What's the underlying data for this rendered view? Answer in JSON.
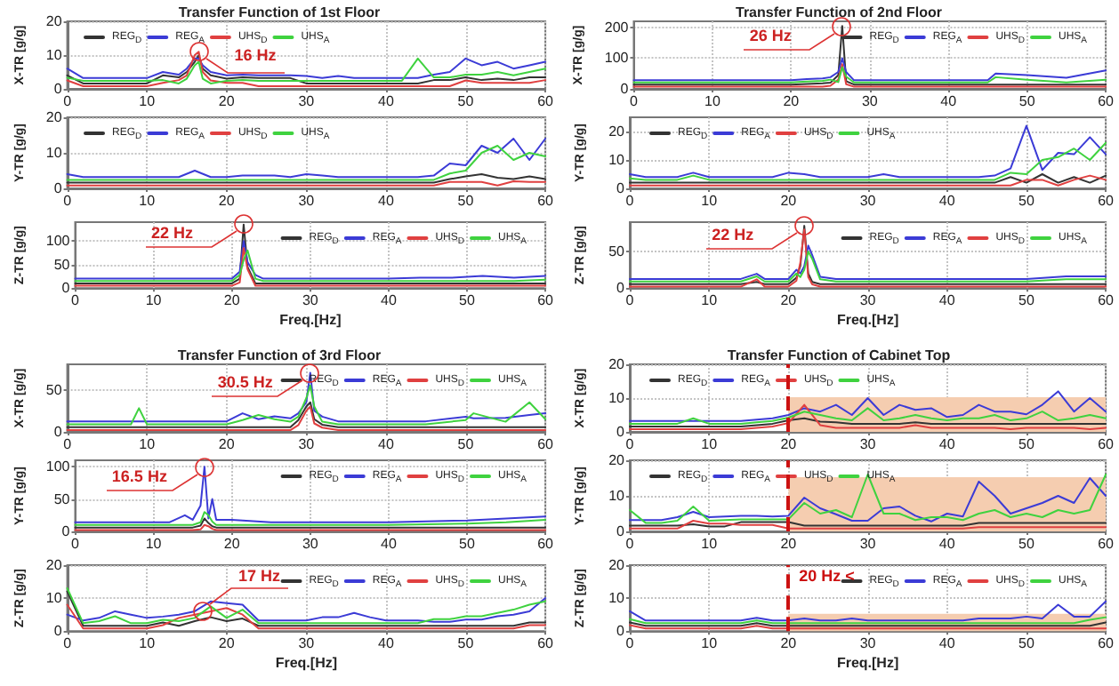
{
  "chart_data": [
    {
      "type": "line",
      "title": "Transfer Function of 1st Floor",
      "ylabel": "X-TR [g/g]",
      "x": [
        0,
        2,
        4,
        6,
        8,
        10,
        12,
        14,
        15,
        16,
        16.5,
        17,
        18,
        20,
        22,
        24,
        26,
        28,
        30,
        32,
        34,
        36,
        38,
        40,
        42,
        44,
        46,
        48,
        50,
        52,
        54,
        56,
        58,
        60
      ],
      "xlim": [
        0,
        60
      ],
      "xticks": [
        0,
        10,
        20,
        30,
        40,
        50,
        60
      ],
      "ylim": [
        0,
        20
      ],
      "yticks": [
        0,
        10,
        20
      ],
      "grid": true,
      "legend": "top left",
      "line_style": "solid",
      "annotations": [
        {
          "text": "16 Hz",
          "x": 16.5,
          "y": 11
        }
      ],
      "series": [
        {
          "name": "REG$_{D}$",
          "color": "#333333",
          "values": [
            4,
            1.6,
            1.6,
            1.6,
            1.6,
            1.6,
            4,
            3.4,
            5,
            8,
            10,
            6,
            4,
            3,
            3.4,
            3.2,
            3.2,
            3.2,
            1.6,
            1.6,
            1.6,
            1.6,
            1.6,
            1.6,
            1.6,
            1.6,
            2.6,
            2.6,
            3.4,
            2.6,
            3,
            2.6,
            3.4,
            3.4
          ]
        },
        {
          "name": "REG$_{A}$",
          "color": "#3b3bd6",
          "values": [
            6,
            3.2,
            3.2,
            3.2,
            3.2,
            3.2,
            5,
            4.2,
            6,
            9,
            9,
            7,
            5,
            4,
            4.2,
            4,
            4,
            4,
            3.8,
            3.2,
            3.8,
            3.2,
            3.2,
            3.2,
            3.2,
            3.2,
            4.2,
            5,
            9,
            7,
            8,
            6,
            7,
            8
          ]
        },
        {
          "name": "UHS$_{D}$",
          "color": "#e04040",
          "values": [
            2.5,
            0.8,
            0.8,
            0.8,
            0.8,
            0.8,
            1.8,
            2.6,
            4,
            10,
            11,
            5,
            2.5,
            1.8,
            1.8,
            0.8,
            0.8,
            0.8,
            0.8,
            0.8,
            0.8,
            0.8,
            0.8,
            0.8,
            0.8,
            0.8,
            0.8,
            0.8,
            2.5,
            1.8,
            1.8,
            1.8,
            1.8,
            2.6
          ]
        },
        {
          "name": "UHS$_{A}$",
          "color": "#3fd23f",
          "values": [
            3.3,
            2.4,
            2.4,
            2.4,
            2.4,
            2.4,
            2.6,
            1.6,
            3,
            7,
            8,
            3,
            1.6,
            2.4,
            2.6,
            2.4,
            2.4,
            2.4,
            2.4,
            2.4,
            2.4,
            2.4,
            2.4,
            2.4,
            2.4,
            9,
            3.4,
            3.4,
            4.2,
            4.2,
            5,
            4,
            5,
            6
          ]
        }
      ]
    },
    {
      "type": "line",
      "ylabel": "Y-TR [g/g]",
      "x": [
        0,
        2,
        4,
        6,
        8,
        10,
        12,
        14,
        16,
        18,
        20,
        22,
        24,
        26,
        28,
        30,
        32,
        34,
        36,
        38,
        40,
        42,
        44,
        46,
        48,
        50,
        52,
        54,
        56,
        58,
        60
      ],
      "xlim": [
        0,
        60
      ],
      "xticks": [
        0,
        10,
        20,
        30,
        40,
        50,
        60
      ],
      "ylim": [
        0,
        20
      ],
      "yticks": [
        0,
        10,
        20
      ],
      "grid": true,
      "legend": "top left",
      "line_style": "solid",
      "series": [
        {
          "name": "REG$_{D}$",
          "color": "#333333",
          "values": [
            1.6,
            1.6,
            1.6,
            1.6,
            1.6,
            1.6,
            1.6,
            1.6,
            1.6,
            1.6,
            1.6,
            1.6,
            1.6,
            1.6,
            1.6,
            1.6,
            1.6,
            1.6,
            1.6,
            1.6,
            1.6,
            1.6,
            1.6,
            1.6,
            2.6,
            3.4,
            4,
            3,
            2.6,
            3.4,
            2.6
          ]
        },
        {
          "name": "REG$_{A}$",
          "color": "#3b3bd6",
          "values": [
            4,
            3.2,
            3.2,
            3.2,
            3.2,
            3.2,
            3.2,
            3.2,
            5,
            3.2,
            3.2,
            3.6,
            3.6,
            3.6,
            3.2,
            4,
            3.6,
            3.2,
            3.2,
            3.2,
            3.2,
            3.2,
            3.2,
            3.6,
            7,
            6.5,
            12,
            10,
            14,
            8,
            14
          ]
        },
        {
          "name": "UHS$_{D}$",
          "color": "#e04040",
          "values": [
            0.8,
            0.8,
            0.8,
            0.8,
            0.8,
            0.8,
            0.8,
            0.8,
            0.8,
            0.8,
            0.8,
            0.8,
            0.8,
            0.8,
            0.8,
            0.8,
            0.8,
            0.8,
            0.8,
            0.8,
            0.8,
            0.8,
            0.8,
            0.8,
            1.8,
            1.8,
            1.8,
            0.8,
            2,
            1.8,
            1.8
          ]
        },
        {
          "name": "UHS$_{A}$",
          "color": "#3fd23f",
          "values": [
            2.4,
            2.4,
            2.4,
            2.4,
            2.4,
            2.4,
            2.4,
            2.4,
            2.4,
            2.4,
            2.4,
            2.4,
            2.4,
            2.4,
            2.4,
            2.4,
            2.4,
            2.4,
            2.4,
            2.4,
            2.4,
            2.4,
            2.4,
            2.4,
            4.2,
            5,
            10,
            12,
            8,
            10,
            9
          ]
        }
      ]
    },
    {
      "type": "line",
      "ylabel": "Z-TR [g/g]",
      "xlabel": "Freq.[Hz]",
      "x": [
        0,
        4,
        8,
        12,
        14,
        16,
        18,
        20,
        21,
        21.5,
        22,
        23,
        24,
        28,
        32,
        36,
        40,
        44,
        48,
        52,
        56,
        60
      ],
      "xlim": [
        0,
        60
      ],
      "xticks": [
        0,
        10,
        20,
        30,
        40,
        50,
        60
      ],
      "ylim": [
        0,
        140
      ],
      "yticks": [
        0,
        50,
        100
      ],
      "grid": true,
      "legend": "top right",
      "line_style": "solid",
      "annotations": [
        {
          "text": "22 Hz",
          "x": 21.5,
          "y": 135
        }
      ],
      "series": [
        {
          "name": "REG$_{D}$",
          "color": "#333333",
          "values": [
            10,
            10,
            10,
            10,
            10,
            10,
            10,
            10,
            20,
            135,
            45,
            10,
            10,
            10,
            10,
            10,
            10,
            10,
            10,
            10,
            10,
            10
          ]
        },
        {
          "name": "REG$_{A}$",
          "color": "#3b3bd6",
          "values": [
            20,
            20,
            20,
            20,
            20,
            20,
            20,
            20,
            35,
            100,
            55,
            28,
            20,
            20,
            20,
            20,
            20,
            22,
            22,
            26,
            22,
            26
          ]
        },
        {
          "name": "UHS$_{D}$",
          "color": "#e04040",
          "values": [
            5,
            5,
            5,
            5,
            5,
            5,
            5,
            5,
            12,
            85,
            40,
            5,
            5,
            5,
            5,
            5,
            5,
            5,
            5,
            5,
            5,
            5
          ]
        },
        {
          "name": "UHS$_{A}$",
          "color": "#3fd23f",
          "values": [
            15,
            15,
            15,
            15,
            15,
            15,
            15,
            15,
            28,
            60,
            80,
            20,
            15,
            15,
            15,
            15,
            15,
            15,
            15,
            15,
            15,
            18
          ]
        }
      ]
    },
    {
      "type": "line",
      "title": "Transfer Function of 2nd Floor",
      "ylabel": "X-TR [g/g]",
      "x": [
        0,
        5,
        10,
        15,
        20,
        22,
        24,
        25,
        26,
        26.5,
        27,
        28,
        30,
        35,
        40,
        45,
        46,
        50,
        55,
        60
      ],
      "xlim": [
        0,
        60
      ],
      "xticks": [
        0,
        10,
        20,
        30,
        40,
        50,
        60
      ],
      "ylim": [
        0,
        220
      ],
      "yticks": [
        0,
        100,
        200
      ],
      "grid": true,
      "legend": "top right",
      "line_style": "solid",
      "annotations": [
        {
          "text": "26 Hz",
          "x": 26.5,
          "y": 205
        }
      ],
      "series": [
        {
          "name": "REG$_{D}$",
          "color": "#333333",
          "values": [
            14,
            14,
            14,
            14,
            14,
            16,
            18,
            20,
            45,
            205,
            25,
            14,
            14,
            14,
            14,
            14,
            14,
            14,
            14,
            14
          ]
        },
        {
          "name": "REG$_{A}$",
          "color": "#3b3bd6",
          "values": [
            28,
            28,
            28,
            28,
            28,
            32,
            34,
            38,
            55,
            100,
            55,
            28,
            28,
            28,
            28,
            28,
            50,
            45,
            36,
            60
          ]
        },
        {
          "name": "UHS$_{D}$",
          "color": "#e04040",
          "values": [
            7,
            7,
            7,
            7,
            7,
            7,
            7,
            10,
            30,
            80,
            15,
            7,
            7,
            7,
            7,
            7,
            7,
            7,
            7,
            7
          ]
        },
        {
          "name": "UHS$_{A}$",
          "color": "#3fd23f",
          "values": [
            21,
            21,
            21,
            21,
            21,
            24,
            26,
            30,
            22,
            70,
            40,
            21,
            21,
            21,
            21,
            21,
            38,
            30,
            21,
            30
          ]
        }
      ]
    },
    {
      "type": "line",
      "ylabel": "Y-TR [g/g]",
      "x": [
        0,
        2,
        4,
        6,
        8,
        10,
        12,
        14,
        16,
        18,
        20,
        22,
        24,
        26,
        28,
        30,
        32,
        34,
        36,
        38,
        40,
        42,
        44,
        46,
        48,
        50,
        52,
        54,
        56,
        58,
        60
      ],
      "xlim": [
        0,
        60
      ],
      "xticks": [
        0,
        10,
        20,
        30,
        40,
        50,
        60
      ],
      "ylim": [
        0,
        25
      ],
      "yticks": [
        0,
        10,
        20
      ],
      "grid": true,
      "legend": "top left",
      "line_style": "solid",
      "series": [
        {
          "name": "REG$_{D}$",
          "color": "#333333",
          "values": [
            2,
            2,
            2,
            2,
            2,
            2,
            2,
            2,
            2,
            2,
            2,
            2,
            2,
            2,
            2,
            2,
            2,
            2,
            2,
            2,
            2,
            2,
            2,
            2,
            4,
            2,
            5,
            2,
            4,
            2,
            4.5
          ]
        },
        {
          "name": "REG$_{A}$",
          "color": "#3b3bd6",
          "values": [
            5,
            4,
            4,
            4,
            5.5,
            4,
            4,
            4,
            4,
            4,
            5.5,
            5,
            4,
            4,
            4,
            4,
            5,
            4,
            4,
            4,
            4,
            4,
            4,
            4.5,
            7,
            22,
            6.5,
            12.5,
            12,
            18,
            12
          ]
        },
        {
          "name": "UHS$_{D}$",
          "color": "#e04040",
          "values": [
            1,
            1,
            1,
            1,
            1,
            1,
            1,
            1,
            1,
            1,
            1,
            1,
            1,
            1,
            1,
            1,
            1,
            1,
            1,
            1,
            1,
            1,
            1,
            1,
            1,
            3,
            3,
            1,
            3,
            4.5,
            3
          ]
        },
        {
          "name": "UHS$_{A}$",
          "color": "#3fd23f",
          "values": [
            3.5,
            3,
            3,
            3,
            4.5,
            3,
            3,
            3,
            3,
            3,
            3,
            3,
            3,
            3,
            3,
            3,
            3,
            3,
            3,
            3,
            3,
            3,
            3,
            3,
            5.5,
            5,
            10,
            11,
            14,
            10,
            16
          ]
        }
      ]
    },
    {
      "type": "line",
      "ylabel": "Z-TR [g/g]",
      "xlabel": "Freq.[Hz]",
      "x": [
        0,
        5,
        10,
        14,
        16,
        17,
        18,
        20,
        21,
        21.5,
        22,
        22.5,
        23,
        24,
        26,
        30,
        40,
        50,
        55,
        60
      ],
      "xlim": [
        0,
        60
      ],
      "xticks": [
        0,
        10,
        20,
        30,
        40,
        50,
        60
      ],
      "ylim": [
        0,
        90
      ],
      "yticks": [
        0,
        50
      ],
      "grid": true,
      "legend": "top right",
      "line_style": "solid",
      "annotations": [
        {
          "text": "22 Hz",
          "x": 22,
          "y": 85
        }
      ],
      "series": [
        {
          "name": "REG$_{D}$",
          "color": "#333333",
          "values": [
            5.5,
            5.5,
            5.5,
            5.5,
            8.5,
            5.5,
            5.5,
            5.5,
            14,
            30,
            85,
            20,
            8.5,
            5.5,
            5.5,
            5.5,
            5.5,
            5.5,
            5.5,
            5.5
          ]
        },
        {
          "name": "REG$_{A}$",
          "color": "#3b3bd6",
          "values": [
            12.5,
            12.5,
            12.5,
            12.5,
            19.5,
            12.5,
            12.5,
            12.5,
            25,
            20,
            30,
            58,
            45,
            15.5,
            12.5,
            12.5,
            12.5,
            12.5,
            16,
            16
          ]
        },
        {
          "name": "UHS$_{D}$",
          "color": "#e04040",
          "values": [
            2,
            2,
            2,
            2,
            12,
            2,
            2,
            2,
            10,
            35,
            80,
            15,
            5,
            2,
            2,
            2,
            2,
            2,
            2,
            2
          ]
        },
        {
          "name": "UHS$_{A}$",
          "color": "#3fd23f",
          "values": [
            9,
            9,
            9,
            9,
            16,
            9,
            9,
            9,
            20,
            15,
            25,
            50,
            40,
            12,
            9,
            9,
            9,
            9,
            12,
            12
          ]
        }
      ]
    },
    {
      "type": "line",
      "title": "Transfer Function of 3rd Floor",
      "ylabel": "X-TR [g/g]",
      "x": [
        0,
        5,
        8,
        9,
        10,
        15,
        20,
        22,
        24,
        26,
        28,
        29,
        30,
        30.5,
        31,
        32,
        34,
        40,
        45,
        50,
        51,
        55,
        58,
        60
      ],
      "xlim": [
        0,
        60
      ],
      "xticks": [
        0,
        10,
        20,
        30,
        40,
        50,
        60
      ],
      "ylim": [
        0,
        80
      ],
      "yticks": [
        0,
        50
      ],
      "grid": true,
      "legend": "top right",
      "line_style": "solid",
      "annotations": [
        {
          "text": "30.5 Hz",
          "x": 30.5,
          "y": 70
        }
      ],
      "series": [
        {
          "name": "REG$_{D}$",
          "color": "#333333",
          "values": [
            5.5,
            5.5,
            5.5,
            5.5,
            5.5,
            5.5,
            5.5,
            5.5,
            5.5,
            5.5,
            5.5,
            14,
            30,
            35,
            15,
            8.5,
            5.5,
            5.5,
            5.5,
            5.5,
            5.5,
            5.5,
            5.5,
            5.5
          ]
        },
        {
          "name": "REG$_{A}$",
          "color": "#3b3bd6",
          "values": [
            12.5,
            12.5,
            12.5,
            12.5,
            12.5,
            12.5,
            12.5,
            22,
            15,
            18.5,
            16,
            22,
            35,
            70,
            25,
            18,
            12.5,
            12.5,
            12.5,
            18,
            16,
            16.5,
            20,
            22
          ]
        },
        {
          "name": "UHS$_{D}$",
          "color": "#e04040",
          "values": [
            2,
            2,
            2,
            2,
            2,
            2,
            2,
            2,
            2,
            2,
            2,
            8,
            25,
            30,
            10,
            5,
            2,
            2,
            2,
            2,
            2,
            2,
            2,
            2
          ]
        },
        {
          "name": "UHS$_{A}$",
          "color": "#3fd23f",
          "values": [
            9,
            9,
            9,
            28,
            9,
            9,
            9,
            14,
            20,
            15,
            12,
            18,
            40,
            55,
            30,
            12,
            9,
            9,
            9,
            14,
            22,
            12,
            35,
            15
          ]
        }
      ]
    },
    {
      "type": "line",
      "ylabel": "Y-TR [g/g]",
      "x": [
        0,
        5,
        10,
        12,
        14,
        15,
        16,
        16.5,
        17,
        17.5,
        18,
        20,
        25,
        30,
        40,
        50,
        55,
        60
      ],
      "xlim": [
        0,
        60
      ],
      "xticks": [
        0,
        10,
        20,
        30,
        40,
        50,
        60
      ],
      "ylim": [
        0,
        110
      ],
      "yticks": [
        0,
        50,
        100
      ],
      "grid": true,
      "legend": "top right",
      "line_style": "solid",
      "annotations": [
        {
          "text": "16.5 Hz",
          "x": 16.5,
          "y": 100
        }
      ],
      "series": [
        {
          "name": "REG$_{D}$",
          "color": "#333333",
          "values": [
            6,
            6,
            6,
            6,
            6,
            6,
            9,
            20,
            13,
            8,
            6,
            6,
            6,
            6,
            6,
            6,
            6,
            6
          ]
        },
        {
          "name": "REG$_{A}$",
          "color": "#3b3bd6",
          "values": [
            14,
            14,
            14,
            14,
            25,
            18,
            40,
            100,
            20,
            50,
            18,
            18,
            14,
            14,
            14,
            17,
            20,
            23
          ]
        },
        {
          "name": "UHS$_{D}$",
          "color": "#e04040",
          "values": [
            2,
            2,
            2,
            2,
            2,
            2,
            3,
            10,
            8,
            4,
            2,
            2,
            2,
            2,
            2,
            2,
            2,
            2
          ]
        },
        {
          "name": "UHS$_{A}$",
          "color": "#3fd23f",
          "values": [
            10,
            10,
            10,
            10,
            10,
            10,
            14,
            30,
            25,
            15,
            10,
            10,
            10,
            10,
            10,
            12,
            14,
            18
          ]
        }
      ]
    },
    {
      "type": "line",
      "ylabel": "Z-TR [g/g]",
      "xlabel": "Freq.[Hz]",
      "x": [
        0,
        2,
        4,
        6,
        8,
        10,
        12,
        14,
        16,
        18,
        20,
        22,
        24,
        26,
        28,
        30,
        32,
        34,
        36,
        38,
        40,
        42,
        44,
        46,
        48,
        50,
        52,
        54,
        56,
        58,
        60
      ],
      "xlim": [
        0,
        60
      ],
      "xticks": [
        0,
        10,
        20,
        30,
        40,
        50,
        60
      ],
      "ylim": [
        0,
        20
      ],
      "yticks": [
        0,
        10,
        20
      ],
      "grid": true,
      "legend": "top right",
      "line_style": "solid",
      "annotations": [
        {
          "text": "17 Hz",
          "x": 17,
          "y": 6
        }
      ],
      "series": [
        {
          "name": "REG$_{D}$",
          "color": "#333333",
          "values": [
            12,
            1.6,
            1.6,
            1.6,
            1.6,
            1.6,
            2.6,
            1.6,
            3,
            4.2,
            3,
            3.8,
            1.6,
            1.6,
            1.6,
            1.6,
            1.6,
            1.6,
            1.6,
            1.6,
            1.6,
            1.6,
            1.6,
            1.6,
            1.6,
            1.6,
            1.6,
            1.6,
            1.6,
            2.6,
            2.6
          ]
        },
        {
          "name": "REG$_{A}$",
          "color": "#3b3bd6",
          "values": [
            5,
            3.2,
            4,
            6,
            5,
            4,
            4.4,
            5,
            6,
            9,
            8.5,
            8,
            3.2,
            3.2,
            3.2,
            3.2,
            4.2,
            4.2,
            5.5,
            4.2,
            3.2,
            3.2,
            3.2,
            2.8,
            2.8,
            3.5,
            3.5,
            4.5,
            5,
            6,
            10
          ]
        },
        {
          "name": "UHS$_{D}$",
          "color": "#e04040",
          "values": [
            8,
            0.8,
            0.8,
            0.8,
            0.8,
            0.8,
            1.8,
            4,
            5,
            6,
            7,
            5,
            0.8,
            0.8,
            0.8,
            0.8,
            0.8,
            0.8,
            0.8,
            0.8,
            0.8,
            0.8,
            0.8,
            0.8,
            0.8,
            0.8,
            0.8,
            0.8,
            0.8,
            1.8,
            1.8
          ]
        },
        {
          "name": "UHS$_{A}$",
          "color": "#3fd23f",
          "values": [
            13,
            2.4,
            3,
            4.5,
            2.4,
            2.4,
            3.4,
            3,
            4,
            7.5,
            4,
            6.5,
            2.4,
            2.4,
            2.4,
            2.4,
            2.4,
            2.4,
            2.4,
            2.4,
            2.4,
            2.4,
            2.4,
            3.6,
            3.6,
            4.5,
            4.5,
            5.5,
            6.5,
            8,
            9
          ]
        }
      ]
    },
    {
      "type": "line",
      "title": "Transfer Function of Cabinet Top",
      "ylabel": "X-TR [g/g]",
      "x": [
        0,
        2,
        4,
        6,
        8,
        10,
        12,
        14,
        16,
        18,
        20,
        22,
        24,
        26,
        28,
        30,
        32,
        34,
        36,
        38,
        40,
        42,
        44,
        46,
        48,
        50,
        52,
        54,
        56,
        58,
        60
      ],
      "xlim": [
        0,
        60
      ],
      "xticks": [
        0,
        10,
        20,
        30,
        40,
        50,
        60
      ],
      "ylim": [
        0,
        20
      ],
      "yticks": [
        0,
        10,
        20
      ],
      "grid": true,
      "legend": "top left",
      "line_style": "solid",
      "ref_lines": [
        {
          "axis": "x",
          "value": 20,
          "color": "#cc1111",
          "line_style": "dashed"
        }
      ],
      "series": [
        {
          "type": "area",
          "color": "#f5cdb0",
          "values": [
            null,
            null,
            null,
            null,
            null,
            null,
            null,
            null,
            null,
            null,
            10,
            10,
            10,
            10,
            10,
            10,
            10,
            10,
            10,
            10,
            10,
            10,
            10,
            10,
            10,
            10,
            10,
            10,
            10,
            10,
            10
          ]
        },
        {
          "name": "REG$_{D}$",
          "color": "#333333",
          "values": [
            1.6,
            1.6,
            1.6,
            1.6,
            1.6,
            1.6,
            1.6,
            1.6,
            2,
            2.4,
            3.4,
            4,
            3,
            2.8,
            2.4,
            2.4,
            2.4,
            2.4,
            2.8,
            2.4,
            2.4,
            2.4,
            2.4,
            2.4,
            2.4,
            2.4,
            2.4,
            2.4,
            2.4,
            2.4,
            2.4
          ]
        },
        {
          "name": "REG$_{A}$",
          "color": "#3b3bd6",
          "values": [
            3.2,
            3.2,
            3.2,
            3.2,
            3.2,
            3.2,
            3.2,
            3.2,
            3.6,
            4,
            5,
            7,
            6,
            8,
            5,
            10,
            5,
            8,
            6.5,
            7,
            4.4,
            5,
            8,
            6,
            6,
            5.2,
            8,
            12,
            6,
            10,
            6
          ]
        },
        {
          "name": "UHS$_{D}$",
          "color": "#e04040",
          "values": [
            0.8,
            0.8,
            0.8,
            0.8,
            0.8,
            0.8,
            0.8,
            0.8,
            1.2,
            1.6,
            2.6,
            8,
            2,
            1.2,
            1.2,
            1.2,
            1.2,
            1.2,
            2,
            1.2,
            1.2,
            1.2,
            1.2,
            1.2,
            0.8,
            1.2,
            1.2,
            1.2,
            1.2,
            0.8,
            1.2
          ]
        },
        {
          "name": "UHS$_{A}$",
          "color": "#3fd23f",
          "values": [
            2.4,
            2.4,
            2.4,
            2.4,
            4,
            2.4,
            2.4,
            2.4,
            2.8,
            3.2,
            4.2,
            6,
            5,
            4,
            3.4,
            7,
            3.4,
            4,
            5,
            4,
            3.4,
            4,
            4,
            5,
            3.4,
            4,
            6,
            3.4,
            4,
            5,
            4
          ]
        }
      ]
    },
    {
      "type": "line",
      "ylabel": "Y-TR [g/g]",
      "x": [
        0,
        2,
        4,
        6,
        8,
        10,
        12,
        14,
        16,
        18,
        20,
        22,
        24,
        26,
        28,
        30,
        32,
        34,
        36,
        38,
        40,
        42,
        44,
        46,
        48,
        50,
        52,
        54,
        56,
        58,
        60
      ],
      "xlim": [
        0,
        60
      ],
      "xticks": [
        0,
        10,
        20,
        30,
        40,
        50,
        60
      ],
      "ylim": [
        0,
        20
      ],
      "yticks": [
        0,
        10,
        20
      ],
      "grid": true,
      "legend": "top left",
      "line_style": "solid",
      "ref_lines": [
        {
          "axis": "x",
          "value": 20,
          "color": "#cc1111",
          "line_style": "dashed"
        }
      ],
      "series": [
        {
          "type": "area",
          "color": "#f5cdb0",
          "values": [
            null,
            null,
            null,
            null,
            null,
            null,
            null,
            null,
            null,
            null,
            15,
            15,
            15,
            15,
            15,
            15,
            15,
            15,
            15,
            15,
            15,
            15,
            15,
            15,
            15,
            15,
            15,
            15,
            15,
            15,
            15
          ]
        },
        {
          "name": "REG$_{D}$",
          "color": "#333333",
          "values": [
            1.6,
            1.6,
            1.6,
            1.6,
            2,
            1.4,
            1.4,
            2.6,
            2.6,
            2.6,
            2.6,
            1.6,
            1.6,
            1.6,
            1.6,
            1.6,
            1.6,
            1.6,
            1.6,
            1.6,
            1.6,
            1.6,
            2.4,
            2.4,
            2.4,
            2.4,
            2.4,
            2.4,
            2.4,
            2.4,
            2.4
          ]
        },
        {
          "name": "REG$_{A}$",
          "color": "#3b3bd6",
          "values": [
            3.2,
            3.2,
            3.2,
            4,
            5.5,
            4,
            4.2,
            4.4,
            4.4,
            4.2,
            4.4,
            9.5,
            6.5,
            4.8,
            3,
            3,
            6.5,
            7,
            4.4,
            2.8,
            5,
            4.2,
            14,
            10,
            5,
            6.5,
            8,
            10,
            8,
            15,
            10
          ]
        },
        {
          "name": "UHS$_{D}$",
          "color": "#e04040",
          "values": [
            0.8,
            0.8,
            0.8,
            0.8,
            3,
            2.2,
            2.2,
            1.8,
            1.8,
            1.8,
            0.8,
            0.8,
            0.8,
            0.8,
            0.8,
            0.8,
            0.8,
            0.8,
            0.8,
            0.8,
            0.8,
            0.8,
            1.2,
            1.2,
            1.2,
            1.2,
            1.2,
            1.2,
            1.2,
            1.2,
            1.2
          ]
        },
        {
          "name": "UHS$_{A}$",
          "color": "#3fd23f",
          "values": [
            6,
            2.4,
            2.4,
            3,
            7,
            3,
            3.2,
            3.4,
            3.4,
            3.4,
            3.4,
            8,
            5,
            6,
            4,
            16,
            5,
            5,
            3.2,
            4,
            4,
            3.2,
            5,
            6,
            4,
            5,
            4,
            6,
            5,
            6,
            16
          ]
        }
      ]
    },
    {
      "type": "line",
      "ylabel": "Z-TR [g/g]",
      "xlabel": "Freq.[Hz]",
      "x": [
        0,
        2,
        4,
        6,
        8,
        10,
        12,
        14,
        16,
        18,
        20,
        22,
        24,
        26,
        28,
        30,
        32,
        34,
        36,
        38,
        40,
        42,
        44,
        46,
        48,
        50,
        52,
        54,
        56,
        58,
        60
      ],
      "xlim": [
        0,
        60
      ],
      "xticks": [
        0,
        10,
        20,
        30,
        40,
        50,
        60
      ],
      "ylim": [
        0,
        20
      ],
      "yticks": [
        0,
        10,
        20
      ],
      "grid": true,
      "legend": "top right",
      "line_style": "solid",
      "ref_lines": [
        {
          "axis": "x",
          "value": 20,
          "label": "20 Hz <",
          "color": "#cc1111",
          "line_style": "dashed"
        }
      ],
      "series": [
        {
          "type": "area",
          "color": "#f5cdb0",
          "values": [
            null,
            null,
            null,
            null,
            null,
            null,
            null,
            null,
            null,
            null,
            5,
            5,
            5,
            5,
            5,
            5,
            5,
            5,
            5,
            5,
            5,
            5,
            5,
            5,
            5,
            5,
            5,
            5,
            5,
            5,
            5
          ]
        },
        {
          "name": "REG$_{D}$",
          "color": "#333333",
          "values": [
            2.6,
            1.6,
            1.6,
            1.6,
            1.6,
            1.6,
            1.6,
            1.6,
            2.4,
            1.6,
            1.6,
            1.6,
            1.6,
            1.6,
            1.6,
            1.6,
            1.6,
            1.6,
            1.6,
            1.6,
            1.6,
            1.6,
            1.6,
            1.6,
            1.6,
            1.6,
            1.6,
            1.6,
            1.6,
            1.6,
            2.6
          ]
        },
        {
          "name": "REG$_{A}$",
          "color": "#3b3bd6",
          "values": [
            6,
            3.2,
            3.2,
            3.2,
            3.2,
            3.2,
            3.2,
            3.2,
            4,
            3.2,
            3.2,
            3.8,
            3.2,
            3.2,
            3.8,
            3.2,
            3.2,
            3.2,
            3.2,
            3.2,
            3.2,
            3.2,
            3.8,
            3.8,
            3.8,
            4.4,
            3.8,
            8,
            4.4,
            4.4,
            9
          ]
        },
        {
          "name": "UHS$_{D}$",
          "color": "#e04040",
          "values": [
            1.8,
            0.8,
            0.8,
            0.8,
            0.8,
            0.8,
            0.8,
            0.8,
            1.6,
            0.8,
            0.8,
            0.8,
            0.8,
            0.8,
            0.8,
            0.8,
            0.8,
            0.8,
            0.8,
            0.8,
            0.8,
            0.8,
            0.8,
            0.8,
            0.8,
            0.8,
            0.8,
            0.8,
            0.8,
            0.8,
            0.8
          ]
        },
        {
          "name": "UHS$_{A}$",
          "color": "#3fd23f",
          "values": [
            3.6,
            2.4,
            2.4,
            2.4,
            2.4,
            2.4,
            2.4,
            2.4,
            3.2,
            2.4,
            2.4,
            2.4,
            2.4,
            2.4,
            2.4,
            2.4,
            2.4,
            2.4,
            2.4,
            2.4,
            2.4,
            2.4,
            2.4,
            2.4,
            2.4,
            2.4,
            2.4,
            2.4,
            2.4,
            3.4,
            4.2
          ]
        }
      ]
    }
  ]
}
